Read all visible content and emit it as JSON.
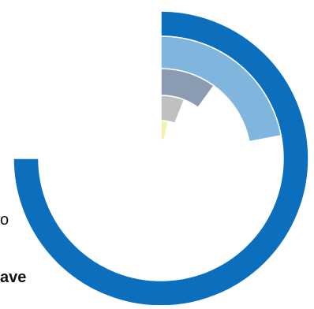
{
  "chart_data": {
    "type": "radial_bar",
    "start_angle_deg": 0,
    "direction": "clockwise",
    "max_value": 100,
    "series": [
      {
        "value": 75,
        "color": "#0B6FBE"
      },
      {
        "value": 22,
        "color": "#80B5DE"
      },
      {
        "value": 10,
        "color": "#8A9BB2"
      },
      {
        "value": 6,
        "color": "#C0C0C0"
      },
      {
        "value": 3,
        "color": "#F5F2B0"
      }
    ]
  },
  "text_fragments": {
    "left_fragment_1": "o",
    "left_fragment_2": "ave"
  }
}
